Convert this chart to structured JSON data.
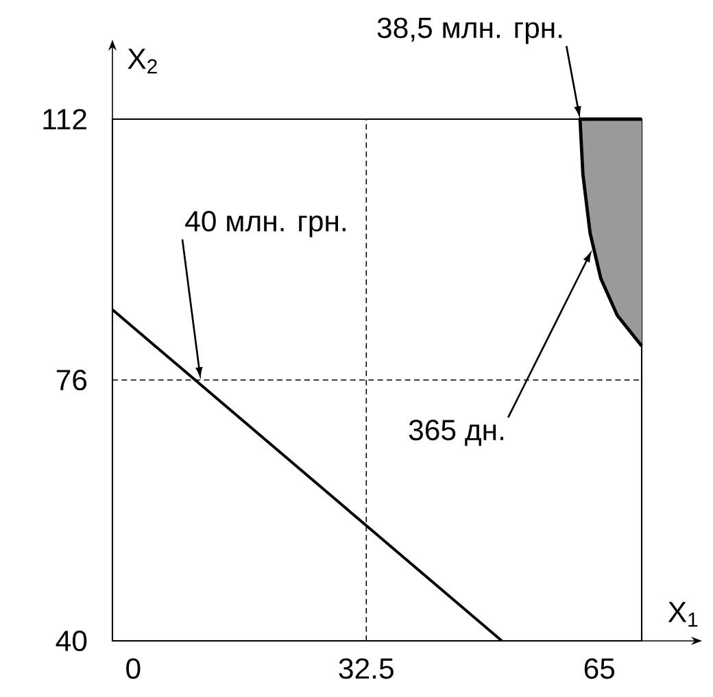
{
  "chart_data": {
    "type": "line",
    "xlabel": "X$_{1}$",
    "ylabel": "X$_{2}$",
    "xlim": [
      -2.9,
      70.9
    ],
    "ylim": [
      40,
      112
    ],
    "xticks": [
      0,
      32.5,
      65
    ],
    "yticks": [
      40,
      76,
      112
    ],
    "series": [
      {
        "color": "#000000",
        "x": [
          -2.9,
          51.4
        ],
        "values": [
          85.7,
          40
        ]
      },
      {
        "type": "area",
        "color": "#9a9a9a",
        "x": [
          70.9,
          62.3,
          62.7,
          63.7,
          65.2,
          67.5,
          70.9
        ],
        "values": [
          112,
          112,
          104.4,
          96.3,
          90.0,
          84.9,
          80.7
        ]
      }
    ],
    "ref_lines": [
      {
        "axis": "x",
        "value": 32.5,
        "line_style": "dashed",
        "color": "#000000"
      },
      {
        "axis": "y",
        "value": 76,
        "line_style": "dashed",
        "color": "#000000"
      }
    ],
    "annotations": [
      {
        "text": "38,5 млн. грн.",
        "x": 62.3,
        "y": 112
      },
      {
        "text": "40 млн. грн.",
        "x": 9.4,
        "y": 76
      },
      {
        "text": "365 дн.",
        "x": 64,
        "y": 94
      }
    ],
    "grid": false
  }
}
